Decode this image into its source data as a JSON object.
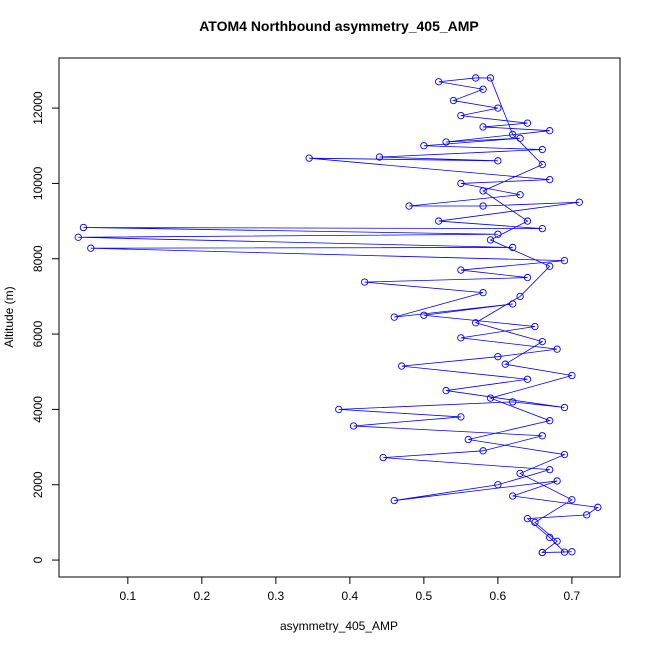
{
  "chart_data": {
    "type": "scatter",
    "connected": true,
    "title": "ATOM4 Northbound asymmetry_405_AMP",
    "x_label": "asymmetry_405_AMP",
    "y_label": "Altitude (m)",
    "color": "#0000ff",
    "xlim": [
      0.007,
      0.765
    ],
    "ylim": [
      -450,
      13330
    ],
    "xticks": [
      0.1,
      0.2,
      0.3,
      0.4,
      0.5,
      0.6,
      0.7
    ],
    "yticks": [
      0,
      2000,
      4000,
      6000,
      8000,
      10000,
      12000
    ],
    "x": [
      0.66,
      0.69,
      0.67,
      0.64,
      0.72,
      0.735,
      0.62,
      0.68,
      0.46,
      0.6,
      0.67,
      0.445,
      0.58,
      0.66,
      0.405,
      0.55,
      0.385,
      0.62,
      0.69,
      0.53,
      0.64,
      0.47,
      0.6,
      0.68,
      0.55,
      0.65,
      0.5,
      0.62,
      0.46,
      0.58,
      0.42,
      0.64,
      0.55,
      0.69,
      0.05,
      0.62,
      0.033,
      0.6,
      0.04,
      0.66,
      0.52,
      0.71,
      0.58,
      0.48,
      0.63,
      0.55,
      0.67,
      0.345,
      0.6,
      0.44,
      0.66,
      0.5,
      0.63,
      0.53,
      0.67,
      0.58,
      0.64,
      0.55,
      0.6,
      0.54,
      0.58,
      0.52,
      0.57,
      0.59,
      0.62,
      0.66,
      0.58,
      0.64,
      0.59,
      0.67,
      0.63,
      0.57,
      0.66,
      0.61,
      0.7,
      0.59,
      0.67,
      0.56,
      0.69,
      0.63,
      0.7,
      0.65,
      0.68,
      0.66,
      0.7
    ],
    "values": [
      200,
      210,
      600,
      1100,
      1200,
      1400,
      1700,
      2100,
      1580,
      2000,
      2400,
      2720,
      2900,
      3300,
      3560,
      3800,
      4000,
      4200,
      4050,
      4500,
      4800,
      5150,
      5400,
      5600,
      5900,
      6200,
      6500,
      6800,
      6450,
      7100,
      7380,
      7500,
      7700,
      7950,
      8280,
      8300,
      8570,
      8650,
      8830,
      8800,
      9000,
      9500,
      9400,
      9400,
      9700,
      10000,
      10100,
      10670,
      10600,
      10700,
      10900,
      11000,
      11200,
      11100,
      11400,
      11500,
      11600,
      11800,
      12000,
      12200,
      12500,
      12700,
      12800,
      12800,
      11300,
      10500,
      9800,
      9000,
      8500,
      7800,
      7000,
      6300,
      5800,
      5200,
      4900,
      4300,
      3700,
      3200,
      2800,
      2300,
      1600,
      1000,
      500,
      200,
      220
    ]
  }
}
